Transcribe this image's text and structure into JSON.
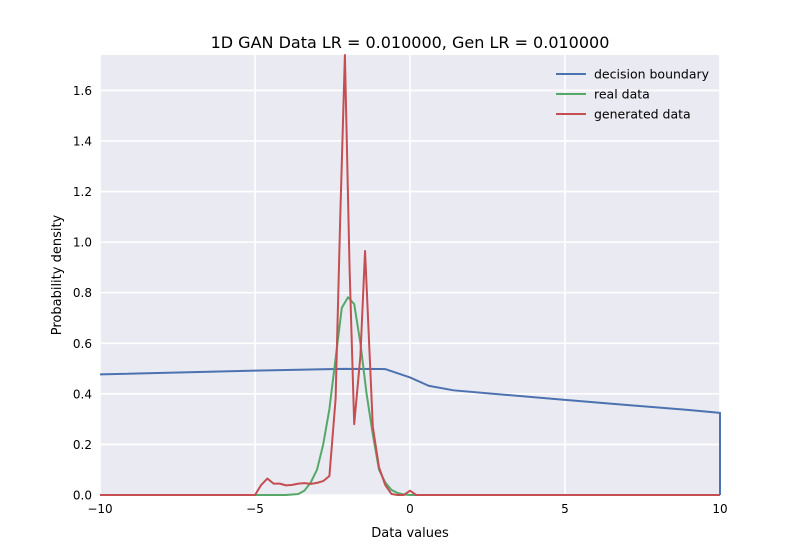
{
  "chart_data": {
    "type": "line",
    "title": "1D GAN Data LR = 0.010000, Gen LR = 0.010000",
    "xlabel": "Data values",
    "ylabel": "Probability density",
    "xlim": [
      -10,
      10
    ],
    "ylim": [
      0,
      1.74
    ],
    "xticks": [
      -10,
      -5,
      0,
      5,
      10
    ],
    "xtick_labels": [
      "−10",
      "−5",
      "0",
      "5",
      "10"
    ],
    "yticks": [
      0.0,
      0.2,
      0.4,
      0.6,
      0.8,
      1.0,
      1.2,
      1.4,
      1.6
    ],
    "ytick_labels": [
      "0.0",
      "0.2",
      "0.4",
      "0.6",
      "0.8",
      "1.0",
      "1.2",
      "1.4",
      "1.6"
    ],
    "grid": true,
    "legend_position": "top-right",
    "series": [
      {
        "name": "decision boundary",
        "color": "#4c72b0",
        "points": [
          [
            -10,
            0.477
          ],
          [
            -5,
            0.492
          ],
          [
            -2.2,
            0.499
          ],
          [
            -0.8,
            0.498
          ],
          [
            0,
            0.465
          ],
          [
            0.6,
            0.432
          ],
          [
            1.4,
            0.414
          ],
          [
            3,
            0.397
          ],
          [
            5,
            0.376
          ],
          [
            7,
            0.356
          ],
          [
            9,
            0.336
          ],
          [
            10,
            0.325
          ],
          [
            10,
            0.0
          ]
        ]
      },
      {
        "name": "real data",
        "color": "#55a868",
        "points": [
          [
            -10,
            0.0
          ],
          [
            -4,
            0.0
          ],
          [
            -3.6,
            0.004
          ],
          [
            -3.4,
            0.018
          ],
          [
            -3.2,
            0.05
          ],
          [
            -3.0,
            0.1
          ],
          [
            -2.8,
            0.2
          ],
          [
            -2.6,
            0.34
          ],
          [
            -2.4,
            0.54
          ],
          [
            -2.2,
            0.74
          ],
          [
            -2.0,
            0.782
          ],
          [
            -1.8,
            0.755
          ],
          [
            -1.6,
            0.6
          ],
          [
            -1.4,
            0.4
          ],
          [
            -1.2,
            0.24
          ],
          [
            -1.0,
            0.1
          ],
          [
            -0.8,
            0.05
          ],
          [
            -0.6,
            0.02
          ],
          [
            -0.4,
            0.008
          ],
          [
            -0.2,
            0.002
          ],
          [
            0,
            0.0
          ],
          [
            10,
            0.0
          ]
        ]
      },
      {
        "name": "generated data",
        "color": "#c44e52",
        "points": [
          [
            -10,
            0.0
          ],
          [
            -5.0,
            0.0
          ],
          [
            -4.8,
            0.04
          ],
          [
            -4.6,
            0.065
          ],
          [
            -4.4,
            0.045
          ],
          [
            -4.2,
            0.045
          ],
          [
            -4.0,
            0.038
          ],
          [
            -3.8,
            0.04
          ],
          [
            -3.6,
            0.045
          ],
          [
            -3.4,
            0.047
          ],
          [
            -3.2,
            0.044
          ],
          [
            -3.0,
            0.048
          ],
          [
            -2.8,
            0.055
          ],
          [
            -2.6,
            0.075
          ],
          [
            -2.4,
            0.38
          ],
          [
            -2.25,
            1.1
          ],
          [
            -2.1,
            1.74
          ],
          [
            -1.95,
            0.9
          ],
          [
            -1.8,
            0.28
          ],
          [
            -1.6,
            0.55
          ],
          [
            -1.45,
            0.965
          ],
          [
            -1.3,
            0.55
          ],
          [
            -1.2,
            0.27
          ],
          [
            -1.0,
            0.11
          ],
          [
            -0.8,
            0.04
          ],
          [
            -0.6,
            0.004
          ],
          [
            -0.4,
            0.0
          ],
          [
            -0.2,
            0.0
          ],
          [
            0,
            0.017
          ],
          [
            0.2,
            0.0
          ],
          [
            10,
            0.0
          ]
        ]
      }
    ]
  }
}
